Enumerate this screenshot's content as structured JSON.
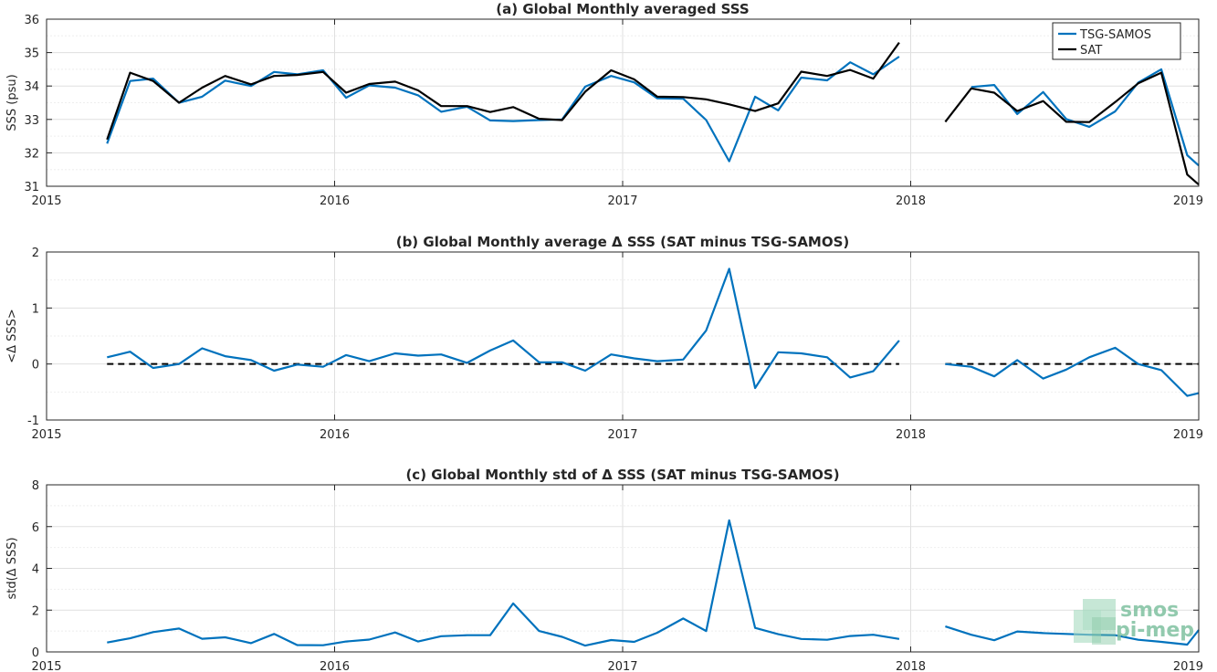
{
  "logo": {
    "line1": "smos",
    "line2": "pi-mep"
  },
  "chart_data": [
    {
      "id": "a",
      "type": "line",
      "title": "(a) Global Monthly averaged SSS",
      "ylabel": "SSS (psu)",
      "xlim": [
        2015,
        2019
      ],
      "ylim": [
        31,
        36
      ],
      "x_ticks": [
        "2015",
        "2016",
        "2017",
        "2018",
        "2019"
      ],
      "y_ticks": [
        "31",
        "32",
        "33",
        "34",
        "35",
        "36"
      ],
      "y_tick_values": [
        31,
        32,
        33,
        34,
        35,
        36
      ],
      "legend": {
        "position": "top-right",
        "entries": [
          "TSG-SAMOS",
          "SAT"
        ]
      },
      "grid": true,
      "series": [
        {
          "name": "TSG-SAMOS",
          "color": "#0072BD",
          "points": [
            [
              2015.21,
              32.28
            ],
            [
              2015.29,
              34.15
            ],
            [
              2015.37,
              34.22
            ],
            [
              2015.46,
              33.5
            ],
            [
              2015.54,
              33.68
            ],
            [
              2015.62,
              34.16
            ],
            [
              2015.71,
              34.0
            ],
            [
              2015.79,
              34.42
            ],
            [
              2015.87,
              34.35
            ],
            [
              2015.96,
              34.47
            ],
            [
              2016.04,
              33.65
            ],
            [
              2016.12,
              34.02
            ],
            [
              2016.21,
              33.95
            ],
            [
              2016.29,
              33.72
            ],
            [
              2016.37,
              33.23
            ],
            [
              2016.46,
              33.38
            ],
            [
              2016.54,
              32.97
            ],
            [
              2016.62,
              32.95
            ],
            [
              2016.71,
              32.98
            ],
            [
              2016.79,
              33.0
            ],
            [
              2016.87,
              33.98
            ],
            [
              2016.96,
              34.3
            ],
            [
              2017.04,
              34.11
            ],
            [
              2017.12,
              33.63
            ],
            [
              2017.21,
              33.62
            ],
            [
              2017.29,
              32.98
            ],
            [
              2017.37,
              31.75
            ],
            [
              2017.46,
              33.68
            ],
            [
              2017.54,
              33.27
            ],
            [
              2017.62,
              34.25
            ],
            [
              2017.71,
              34.17
            ],
            [
              2017.79,
              34.71
            ],
            [
              2017.87,
              34.35
            ],
            [
              2017.96,
              34.88
            ],
            null,
            [
              2018.21,
              33.97
            ],
            [
              2018.29,
              34.03
            ],
            [
              2018.37,
              33.16
            ],
            [
              2018.46,
              33.82
            ],
            [
              2018.54,
              33.01
            ],
            [
              2018.62,
              32.78
            ],
            [
              2018.71,
              33.24
            ],
            [
              2018.79,
              34.1
            ],
            [
              2018.87,
              34.5
            ],
            [
              2018.96,
              31.93
            ],
            [
              2019.0,
              31.62
            ]
          ]
        },
        {
          "name": "SAT",
          "color": "#000000",
          "points": [
            [
              2015.21,
              32.4
            ],
            [
              2015.29,
              34.4
            ],
            [
              2015.37,
              34.15
            ],
            [
              2015.46,
              33.5
            ],
            [
              2015.54,
              33.95
            ],
            [
              2015.62,
              34.3
            ],
            [
              2015.71,
              34.05
            ],
            [
              2015.79,
              34.3
            ],
            [
              2015.87,
              34.33
            ],
            [
              2015.96,
              34.42
            ],
            [
              2016.04,
              33.8
            ],
            [
              2016.12,
              34.06
            ],
            [
              2016.21,
              34.13
            ],
            [
              2016.29,
              33.87
            ],
            [
              2016.37,
              33.4
            ],
            [
              2016.46,
              33.4
            ],
            [
              2016.54,
              33.22
            ],
            [
              2016.62,
              33.37
            ],
            [
              2016.71,
              33.02
            ],
            [
              2016.79,
              32.98
            ],
            [
              2016.87,
              33.83
            ],
            [
              2016.96,
              34.47
            ],
            [
              2017.04,
              34.2
            ],
            [
              2017.12,
              33.68
            ],
            [
              2017.21,
              33.67
            ],
            [
              2017.29,
              33.6
            ],
            [
              2017.37,
              33.45
            ],
            [
              2017.46,
              33.25
            ],
            [
              2017.54,
              33.48
            ],
            [
              2017.62,
              34.43
            ],
            [
              2017.71,
              34.3
            ],
            [
              2017.79,
              34.48
            ],
            [
              2017.87,
              34.22
            ],
            [
              2017.96,
              35.3
            ],
            null,
            [
              2018.12,
              32.93
            ],
            [
              2018.21,
              33.93
            ],
            [
              2018.29,
              33.8
            ],
            [
              2018.37,
              33.25
            ],
            [
              2018.46,
              33.55
            ],
            [
              2018.54,
              32.93
            ],
            [
              2018.62,
              32.92
            ],
            [
              2018.71,
              33.52
            ],
            [
              2018.79,
              34.08
            ],
            [
              2018.87,
              34.4
            ],
            [
              2018.96,
              31.35
            ],
            [
              2019.0,
              31.05
            ]
          ]
        }
      ]
    },
    {
      "id": "b",
      "type": "line",
      "title": "(b) Global Monthly average Δ SSS (SAT minus TSG-SAMOS)",
      "ylabel": "<Δ SSS>",
      "xlim": [
        2015,
        2019
      ],
      "ylim": [
        -1,
        2
      ],
      "x_ticks": [
        "2015",
        "2016",
        "2017",
        "2018",
        "2019"
      ],
      "y_ticks": [
        "-1",
        "0",
        "1",
        "2"
      ],
      "y_tick_values": [
        -1,
        0,
        1,
        2
      ],
      "grid": true,
      "reference_line": {
        "y": 0,
        "style": "dashed",
        "color": "#000000",
        "segments": [
          [
            2015.21,
            2017.96
          ],
          [
            2018.12,
            2019.0
          ]
        ]
      },
      "series": [
        {
          "color": "#0072BD",
          "points": [
            [
              2015.21,
              0.12
            ],
            [
              2015.29,
              0.22
            ],
            [
              2015.37,
              -0.07
            ],
            [
              2015.46,
              0.0
            ],
            [
              2015.54,
              0.28
            ],
            [
              2015.62,
              0.14
            ],
            [
              2015.71,
              0.07
            ],
            [
              2015.79,
              -0.12
            ],
            [
              2015.87,
              -0.01
            ],
            [
              2015.96,
              -0.05
            ],
            [
              2016.04,
              0.16
            ],
            [
              2016.12,
              0.05
            ],
            [
              2016.21,
              0.19
            ],
            [
              2016.29,
              0.15
            ],
            [
              2016.37,
              0.17
            ],
            [
              2016.46,
              0.02
            ],
            [
              2016.54,
              0.24
            ],
            [
              2016.62,
              0.42
            ],
            [
              2016.71,
              0.03
            ],
            [
              2016.79,
              0.03
            ],
            [
              2016.87,
              -0.12
            ],
            [
              2016.96,
              0.17
            ],
            [
              2017.04,
              0.1
            ],
            [
              2017.12,
              0.05
            ],
            [
              2017.21,
              0.08
            ],
            [
              2017.29,
              0.6
            ],
            [
              2017.37,
              1.7
            ],
            [
              2017.46,
              -0.43
            ],
            [
              2017.54,
              0.21
            ],
            [
              2017.62,
              0.19
            ],
            [
              2017.71,
              0.12
            ],
            [
              2017.79,
              -0.24
            ],
            [
              2017.87,
              -0.13
            ],
            [
              2017.96,
              0.42
            ],
            null,
            [
              2018.12,
              0.0
            ],
            [
              2018.21,
              -0.05
            ],
            [
              2018.29,
              -0.22
            ],
            [
              2018.37,
              0.07
            ],
            [
              2018.46,
              -0.26
            ],
            [
              2018.54,
              -0.1
            ],
            [
              2018.62,
              0.12
            ],
            [
              2018.71,
              0.29
            ],
            [
              2018.79,
              0.0
            ],
            [
              2018.87,
              -0.11
            ],
            [
              2018.96,
              -0.57
            ],
            [
              2019.0,
              -0.52
            ]
          ]
        }
      ]
    },
    {
      "id": "c",
      "type": "line",
      "title": "(c) Global Monthly std of Δ SSS (SAT minus TSG-SAMOS)",
      "ylabel": "std(Δ SSS)",
      "xlim": [
        2015,
        2019
      ],
      "ylim": [
        0,
        8
      ],
      "x_ticks": [
        "2015",
        "2016",
        "2017",
        "2018",
        "2019"
      ],
      "y_ticks": [
        "0",
        "2",
        "4",
        "6",
        "8"
      ],
      "y_tick_values": [
        0,
        2,
        4,
        6,
        8
      ],
      "grid": true,
      "series": [
        {
          "color": "#0072BD",
          "points": [
            [
              2015.21,
              0.45
            ],
            [
              2015.29,
              0.65
            ],
            [
              2015.37,
              0.95
            ],
            [
              2015.46,
              1.12
            ],
            [
              2015.54,
              0.63
            ],
            [
              2015.62,
              0.7
            ],
            [
              2015.71,
              0.42
            ],
            [
              2015.79,
              0.86
            ],
            [
              2015.87,
              0.33
            ],
            [
              2015.96,
              0.32
            ],
            [
              2016.04,
              0.5
            ],
            [
              2016.12,
              0.59
            ],
            [
              2016.21,
              0.93
            ],
            [
              2016.29,
              0.5
            ],
            [
              2016.37,
              0.75
            ],
            [
              2016.46,
              0.8
            ],
            [
              2016.54,
              0.8
            ],
            [
              2016.62,
              2.32
            ],
            [
              2016.71,
              1.0
            ],
            [
              2016.79,
              0.72
            ],
            [
              2016.87,
              0.3
            ],
            [
              2016.96,
              0.57
            ],
            [
              2017.04,
              0.48
            ],
            [
              2017.12,
              0.92
            ],
            [
              2017.21,
              1.6
            ],
            [
              2017.29,
              1.0
            ],
            [
              2017.37,
              6.3
            ],
            [
              2017.46,
              1.15
            ],
            [
              2017.54,
              0.85
            ],
            [
              2017.62,
              0.62
            ],
            [
              2017.71,
              0.58
            ],
            [
              2017.79,
              0.76
            ],
            [
              2017.87,
              0.82
            ],
            [
              2017.96,
              0.62
            ],
            null,
            [
              2018.12,
              1.22
            ],
            [
              2018.21,
              0.82
            ],
            [
              2018.29,
              0.56
            ],
            [
              2018.37,
              0.98
            ],
            [
              2018.46,
              0.9
            ],
            [
              2018.54,
              0.86
            ],
            [
              2018.62,
              0.82
            ],
            [
              2018.71,
              0.8
            ],
            [
              2018.79,
              0.58
            ],
            [
              2018.87,
              0.48
            ],
            [
              2018.96,
              0.35
            ],
            [
              2019.0,
              1.05
            ]
          ]
        }
      ]
    }
  ]
}
